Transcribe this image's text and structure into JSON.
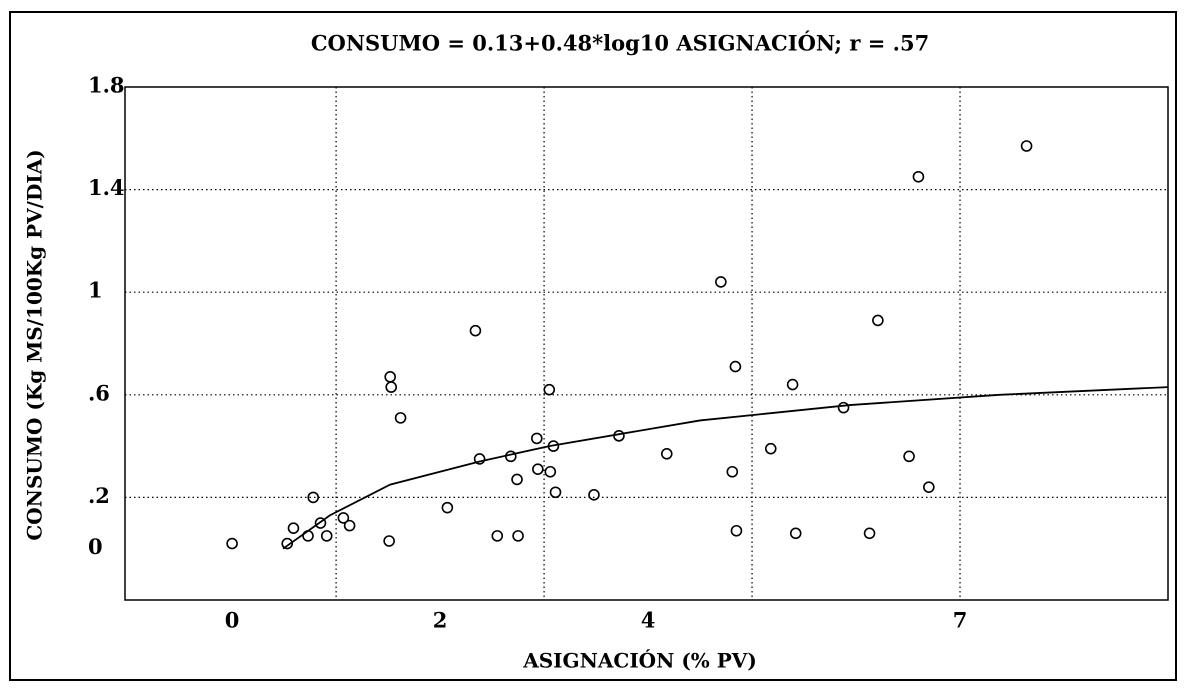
{
  "chart_data": {
    "type": "scatter",
    "title": "CONSUMO = 0.13+0.48*log10 ASIGNACIÓN; r = .57",
    "x_label": "ASIGNACIÓN (% PV)",
    "y_label": "CONSUMO (Kg MS/100Kg PV/DIA)",
    "xlim": [
      -1.03,
      9.0
    ],
    "ylim": [
      -0.2,
      1.8
    ],
    "xticks": [
      0,
      2,
      4,
      7
    ],
    "xgridlines": [
      1,
      3,
      5,
      7
    ],
    "yticks": [
      1.8,
      1.4,
      1,
      {
        "value": 0.6,
        "label": ".6"
      },
      {
        "value": 0.2,
        "label": ".2"
      },
      0
    ],
    "ygridlines": [
      1.4,
      1,
      0.6,
      0.2
    ],
    "grid": true,
    "color": "#000000",
    "series": [
      {
        "x": [
          0,
          0.53,
          0.59,
          0.73,
          0.78,
          0.85,
          0.91,
          1.07,
          1.13,
          1.51,
          1.52,
          1.53,
          1.62,
          2.07,
          2.34,
          2.38,
          2.55,
          2.68,
          2.74,
          2.75,
          2.93,
          2.94,
          3.09,
          3.11,
          3.05,
          3.06,
          3.48,
          3.72,
          4.18,
          4.7,
          4.84,
          4.81,
          4.85,
          5.18,
          5.39,
          5.42,
          5.88,
          6.13,
          6.21,
          6.51,
          6.6,
          6.7,
          7.64
        ],
        "values": [
          0.02,
          0.02,
          0.08,
          0.05,
          0.2,
          0.1,
          0.05,
          0.12,
          0.09,
          0.03,
          0.67,
          0.63,
          0.51,
          0.16,
          0.85,
          0.35,
          0.05,
          0.36,
          0.27,
          0.05,
          0.43,
          0.31,
          0.4,
          0.22,
          0.62,
          0.3,
          0.21,
          0.44,
          0.37,
          1.04,
          0.71,
          0.3,
          0.07,
          0.39,
          0.64,
          0.06,
          0.55,
          0.06,
          0.89,
          0.36,
          1.45,
          0.24,
          1.57
        ]
      }
    ],
    "fit": {
      "x": [
        0.49,
        0.94,
        1.52,
        2.38,
        3.05,
        4.5,
        5.94,
        7.38,
        9.0
      ],
      "values": [
        0.0,
        0.13,
        0.25,
        0.34,
        0.4,
        0.5,
        0.56,
        0.6,
        0.63
      ]
    }
  }
}
